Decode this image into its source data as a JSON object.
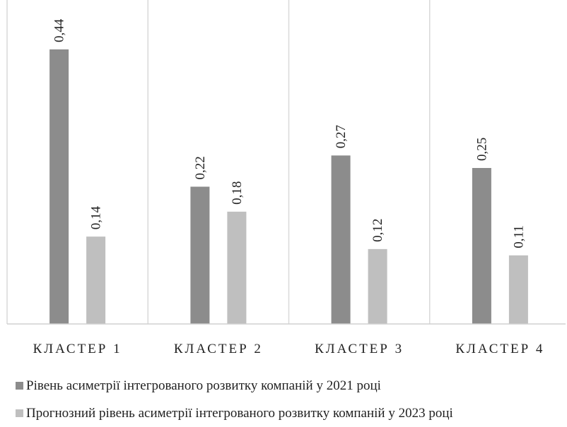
{
  "chart_data": {
    "type": "bar",
    "categories": [
      "КЛАСТЕР 1",
      "КЛАСТЕР 2",
      "КЛАСТЕР 3",
      "КЛАСТЕР 4"
    ],
    "series": [
      {
        "name": "Рівень асиметрії інтегрованого розвитку компаній у 2021 році",
        "values": [
          0.44,
          0.22,
          0.27,
          0.25
        ],
        "labels": [
          "0,44",
          "0,22",
          "0,27",
          "0,25"
        ],
        "color": "#8c8c8c"
      },
      {
        "name": "Прогнозний рівень асиметрії інтегрованого розвитку компаній у 2023 році",
        "values": [
          0.14,
          0.18,
          0.12,
          0.11
        ],
        "labels": [
          "0,14",
          "0,18",
          "0,12",
          "0,11"
        ],
        "color": "#bfbfbf"
      }
    ],
    "ylim": [
      0,
      0.5
    ],
    "grid": "vertical separators between categories",
    "legend": "bottom-left"
  }
}
